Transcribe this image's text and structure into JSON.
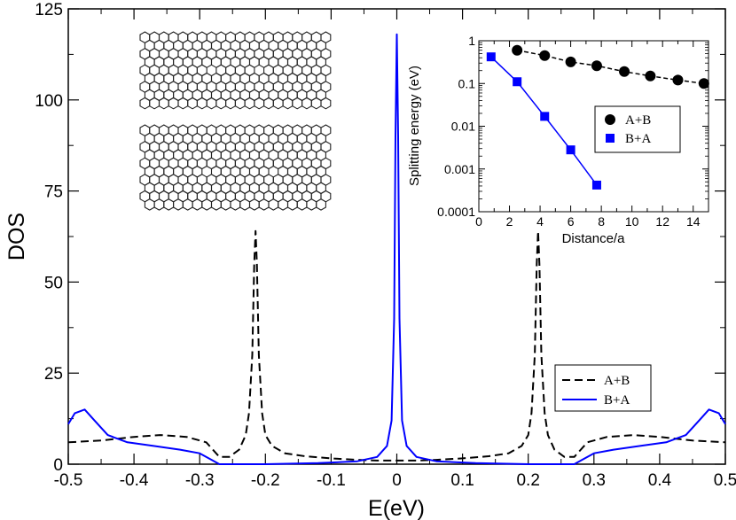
{
  "chart_data": [
    {
      "type": "line",
      "xlabel": "E(eV)",
      "ylabel": "DOS",
      "xlim": [
        -0.5,
        0.5
      ],
      "ylim": [
        0,
        125
      ],
      "xticks": [
        "-0.5",
        "-0.4",
        "-0.3",
        "-0.2",
        "-0.1",
        "0",
        "0.1",
        "0.2",
        "0.3",
        "0.4",
        "0.5"
      ],
      "yticks": [
        "0",
        "25",
        "50",
        "75",
        "100",
        "125"
      ],
      "legend": {
        "position": "bottom-right"
      },
      "series": [
        {
          "name": "A+B",
          "style": "dashed",
          "color": "#000000",
          "x": [
            -0.5,
            -0.45,
            -0.4,
            -0.36,
            -0.32,
            -0.29,
            -0.27,
            -0.255,
            -0.24,
            -0.23,
            -0.225,
            -0.22,
            -0.217,
            -0.215,
            -0.213,
            -0.21,
            -0.205,
            -0.2,
            -0.19,
            -0.17,
            -0.14,
            -0.1,
            -0.06,
            -0.03,
            -0.015,
            -0.005,
            0,
            0.005,
            0.015,
            0.03,
            0.06,
            0.1,
            0.14,
            0.17,
            0.19,
            0.2,
            0.205,
            0.21,
            0.213,
            0.215,
            0.217,
            0.22,
            0.225,
            0.23,
            0.24,
            0.255,
            0.27,
            0.29,
            0.32,
            0.36,
            0.4,
            0.45,
            0.5
          ],
          "y": [
            6,
            6.5,
            7.5,
            8,
            7.5,
            6,
            2,
            2,
            4,
            8,
            14,
            30,
            55,
            64,
            55,
            30,
            14,
            8,
            5,
            3,
            2.2,
            1.6,
            1.2,
            1,
            1,
            1,
            1,
            1,
            1,
            1,
            1.2,
            1.6,
            2.2,
            3,
            5,
            8,
            14,
            30,
            55,
            64,
            55,
            30,
            14,
            8,
            4,
            2,
            2,
            6,
            7.5,
            8,
            7.5,
            6.5,
            6
          ]
        },
        {
          "name": "B+A",
          "style": "solid",
          "color": "#0000ff",
          "x": [
            -0.5,
            -0.49,
            -0.475,
            -0.46,
            -0.44,
            -0.41,
            -0.37,
            -0.33,
            -0.3,
            -0.28,
            -0.27,
            -0.2,
            -0.12,
            -0.06,
            -0.03,
            -0.015,
            -0.008,
            -0.004,
            -0.002,
            0,
            0.002,
            0.004,
            0.008,
            0.015,
            0.03,
            0.06,
            0.12,
            0.2,
            0.27,
            0.28,
            0.3,
            0.33,
            0.37,
            0.41,
            0.44,
            0.46,
            0.475,
            0.49,
            0.5
          ],
          "y": [
            11,
            14,
            15,
            12,
            8,
            6,
            5,
            4,
            3,
            1,
            0,
            0,
            0.3,
            0.8,
            2,
            5,
            12,
            40,
            90,
            118,
            90,
            40,
            12,
            5,
            2,
            0.8,
            0.3,
            0,
            0,
            1,
            3,
            4,
            5,
            6,
            8,
            12,
            15,
            14,
            11
          ]
        }
      ]
    },
    {
      "type": "scatter",
      "xlabel": "Distance/a",
      "ylabel": "Splitting energy (eV)",
      "xlim": [
        0,
        15
      ],
      "ylim": [
        0.0001,
        1
      ],
      "yscale": "log",
      "xticks": [
        "0",
        "2",
        "4",
        "6",
        "8",
        "10",
        "12",
        "14"
      ],
      "yticks": [
        "0.0001",
        "0.001",
        "0.01",
        "0.1",
        "1"
      ],
      "legend": {
        "position": "center-right"
      },
      "series": [
        {
          "name": "A+B",
          "marker": "circle",
          "line": "dashed",
          "color": "#000000",
          "x": [
            2.5,
            4.3,
            6.0,
            7.7,
            9.5,
            11.2,
            13.0,
            14.7
          ],
          "y": [
            0.6,
            0.45,
            0.32,
            0.26,
            0.19,
            0.15,
            0.12,
            0.1
          ]
        },
        {
          "name": "B+A",
          "marker": "square",
          "line": "solid",
          "color": "#0000ff",
          "x": [
            0.8,
            2.5,
            4.3,
            6.0,
            7.7
          ],
          "y": [
            0.42,
            0.11,
            0.017,
            0.0028,
            0.00042
          ]
        }
      ]
    }
  ]
}
